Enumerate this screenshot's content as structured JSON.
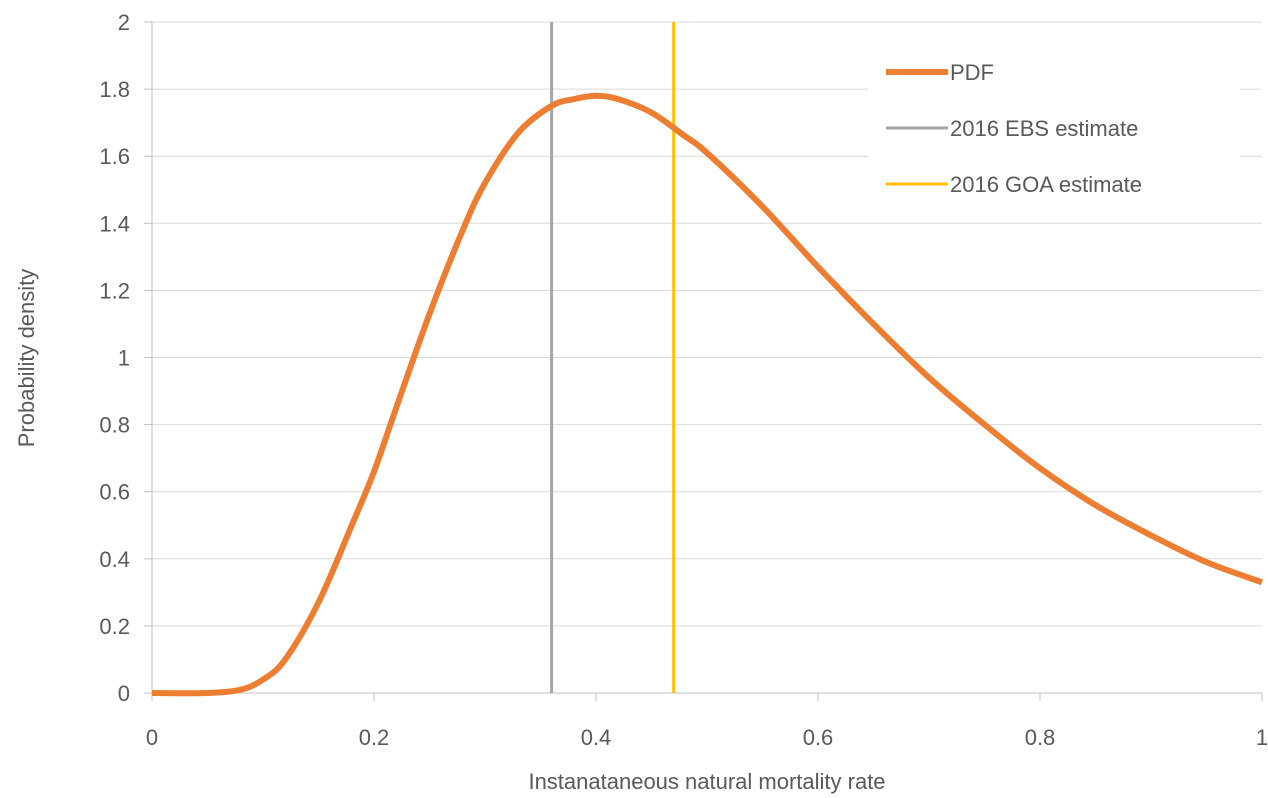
{
  "chart_data": {
    "type": "line",
    "title": "",
    "xlabel": "Instanataneous natural mortality rate",
    "ylabel": "Probability density",
    "xlim": [
      0,
      1
    ],
    "ylim": [
      0,
      2
    ],
    "x_ticks": [
      "0",
      "0.2",
      "0.4",
      "0.6",
      "0.8",
      "1"
    ],
    "y_ticks": [
      "0",
      "0.2",
      "0.4",
      "0.6",
      "0.8",
      "1",
      "1.2",
      "1.4",
      "1.6",
      "1.8",
      "2"
    ],
    "grid": true,
    "legend_position": "top-right",
    "series": [
      {
        "name": "PDF",
        "color": "#ED7D31",
        "x": [
          0,
          0.05,
          0.08,
          0.1,
          0.12,
          0.15,
          0.18,
          0.2,
          0.22,
          0.25,
          0.28,
          0.3,
          0.33,
          0.36,
          0.38,
          0.4,
          0.42,
          0.45,
          0.48,
          0.5,
          0.55,
          0.6,
          0.65,
          0.7,
          0.75,
          0.8,
          0.85,
          0.9,
          0.95,
          1.0
        ],
        "y": [
          0,
          0.0,
          0.01,
          0.04,
          0.1,
          0.27,
          0.5,
          0.66,
          0.85,
          1.13,
          1.38,
          1.52,
          1.67,
          1.75,
          1.77,
          1.78,
          1.77,
          1.73,
          1.66,
          1.61,
          1.45,
          1.27,
          1.1,
          0.94,
          0.8,
          0.67,
          0.56,
          0.47,
          0.39,
          0.33
        ]
      },
      {
        "name": "2016 EBS estimate",
        "color": "#A5A5A5",
        "x": [
          0.36,
          0.36
        ],
        "y": [
          0,
          2
        ]
      },
      {
        "name": "2016 GOA estimate",
        "color": "#FFC000",
        "x": [
          0.47,
          0.47
        ],
        "y": [
          0,
          2
        ]
      }
    ]
  }
}
